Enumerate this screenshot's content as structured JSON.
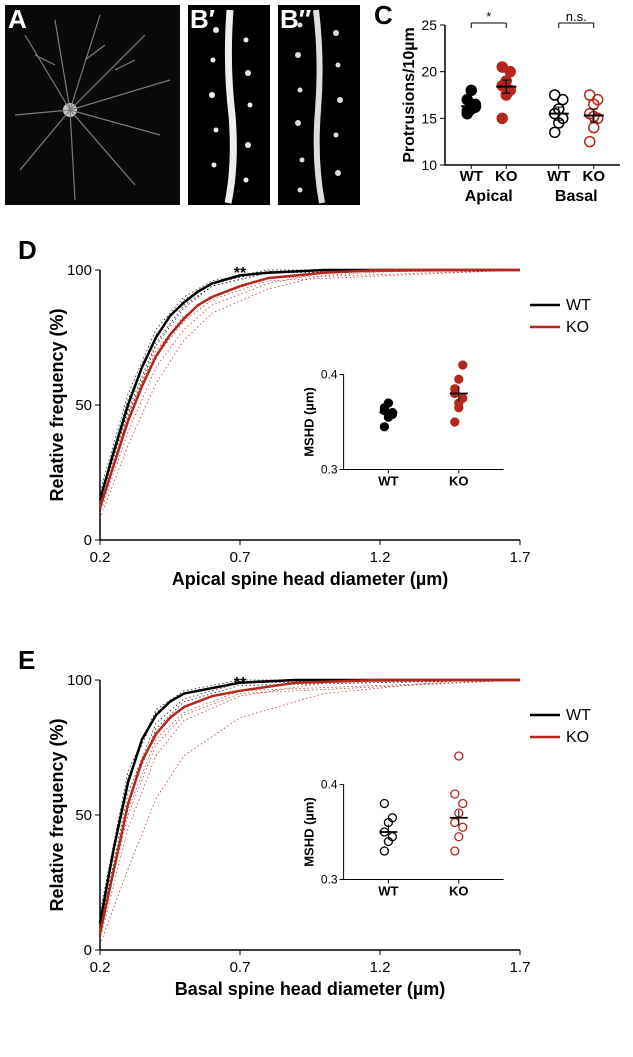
{
  "labels": {
    "A": "A",
    "Bp": "B′",
    "Bpp": "B′′",
    "C": "C",
    "D": "D",
    "E": "E"
  },
  "colors": {
    "wt": "#000000",
    "ko": "#b5261f",
    "bg": "#ffffff",
    "inset_border": "#000000"
  },
  "panelC": {
    "type": "scatter",
    "ylabel": "Protrusions/10µm",
    "ylim": [
      10,
      25
    ],
    "yticks": [
      10,
      15,
      20,
      25
    ],
    "groups": [
      "Apical",
      "Basal"
    ],
    "subgroups": [
      "WT",
      "KO"
    ],
    "sig": {
      "apical": "*",
      "basal": "n.s."
    },
    "data": {
      "apical_wt": {
        "values": [
          15.5,
          16.0,
          16.5,
          17.0,
          18.0,
          16.2,
          15.8
        ],
        "mean": 16.3,
        "color": "#000000",
        "filled": true
      },
      "apical_ko": {
        "values": [
          15.0,
          17.5,
          18.0,
          18.5,
          19.0,
          20.0,
          20.5,
          18.2
        ],
        "mean": 18.4,
        "color": "#b5261f",
        "filled": true
      },
      "basal_wt": {
        "values": [
          13.5,
          14.5,
          15.0,
          15.5,
          16.0,
          17.0,
          17.5
        ],
        "mean": 15.5,
        "color": "#000000",
        "filled": false
      },
      "basal_ko": {
        "values": [
          12.5,
          14.0,
          15.0,
          15.5,
          16.5,
          17.0,
          17.5,
          15.2
        ],
        "mean": 15.3,
        "color": "#b5261f",
        "filled": false
      }
    },
    "marker_size": 5,
    "errbar_width": 8
  },
  "panelD": {
    "type": "line",
    "title_sig": "**",
    "ylabel": "Relative frequency (%)",
    "xlabel": "Apical spine head diameter (µm)",
    "xlim": [
      0.2,
      1.7
    ],
    "xticks": [
      0.2,
      0.7,
      1.2,
      1.7
    ],
    "ylim": [
      0,
      100
    ],
    "yticks": [
      0,
      50,
      100
    ],
    "legend": {
      "WT": "#000000",
      "KO": "#b5261f"
    },
    "line_width_main": 2.5,
    "line_width_dotted": 0.7,
    "mean_wt": [
      [
        0.2,
        15
      ],
      [
        0.25,
        33
      ],
      [
        0.3,
        50
      ],
      [
        0.35,
        64
      ],
      [
        0.4,
        75
      ],
      [
        0.45,
        83
      ],
      [
        0.5,
        88
      ],
      [
        0.55,
        92
      ],
      [
        0.6,
        95
      ],
      [
        0.7,
        98
      ],
      [
        0.8,
        99
      ],
      [
        1.0,
        100
      ],
      [
        1.7,
        100
      ]
    ],
    "mean_ko": [
      [
        0.2,
        12
      ],
      [
        0.25,
        28
      ],
      [
        0.3,
        44
      ],
      [
        0.35,
        57
      ],
      [
        0.4,
        68
      ],
      [
        0.45,
        76
      ],
      [
        0.5,
        82
      ],
      [
        0.55,
        87
      ],
      [
        0.6,
        90
      ],
      [
        0.7,
        94
      ],
      [
        0.8,
        97
      ],
      [
        1.0,
        99
      ],
      [
        1.2,
        100
      ],
      [
        1.7,
        100
      ]
    ],
    "dotted_wt": [
      [
        [
          0.2,
          18
        ],
        [
          0.3,
          54
        ],
        [
          0.4,
          78
        ],
        [
          0.5,
          90
        ],
        [
          0.6,
          96
        ],
        [
          0.8,
          100
        ],
        [
          1.7,
          100
        ]
      ],
      [
        [
          0.2,
          12
        ],
        [
          0.3,
          46
        ],
        [
          0.4,
          72
        ],
        [
          0.5,
          86
        ],
        [
          0.6,
          94
        ],
        [
          0.8,
          99
        ],
        [
          1.7,
          100
        ]
      ],
      [
        [
          0.2,
          16
        ],
        [
          0.3,
          52
        ],
        [
          0.4,
          76
        ],
        [
          0.5,
          89
        ],
        [
          0.6,
          95
        ],
        [
          0.8,
          99.5
        ],
        [
          1.7,
          100
        ]
      ],
      [
        [
          0.2,
          14
        ],
        [
          0.3,
          48
        ],
        [
          0.4,
          73
        ],
        [
          0.5,
          87
        ],
        [
          0.6,
          94
        ],
        [
          0.8,
          99
        ],
        [
          1.7,
          100
        ]
      ]
    ],
    "dotted_ko": [
      [
        [
          0.2,
          10
        ],
        [
          0.3,
          40
        ],
        [
          0.4,
          64
        ],
        [
          0.5,
          78
        ],
        [
          0.6,
          87
        ],
        [
          0.8,
          95
        ],
        [
          1.0,
          99
        ],
        [
          1.7,
          100
        ]
      ],
      [
        [
          0.2,
          14
        ],
        [
          0.3,
          47
        ],
        [
          0.4,
          70
        ],
        [
          0.5,
          83
        ],
        [
          0.6,
          90
        ],
        [
          0.8,
          97
        ],
        [
          1.7,
          100
        ]
      ],
      [
        [
          0.2,
          8
        ],
        [
          0.3,
          35
        ],
        [
          0.4,
          58
        ],
        [
          0.5,
          74
        ],
        [
          0.6,
          84
        ],
        [
          0.8,
          93
        ],
        [
          1.0,
          98
        ],
        [
          1.3,
          100
        ],
        [
          1.7,
          100
        ]
      ],
      [
        [
          0.2,
          13
        ],
        [
          0.3,
          45
        ],
        [
          0.4,
          68
        ],
        [
          0.5,
          81
        ],
        [
          0.6,
          89
        ],
        [
          0.8,
          96
        ],
        [
          1.7,
          100
        ]
      ]
    ],
    "inset": {
      "ylabel": "MSHD (µm)",
      "ylim": [
        0.3,
        0.4
      ],
      "yticks": [
        0.3,
        0.4
      ],
      "groups": [
        "WT",
        "KO"
      ],
      "wt": {
        "values": [
          0.345,
          0.355,
          0.36,
          0.365,
          0.37,
          0.358,
          0.362
        ],
        "mean": 0.36,
        "color": "#000000",
        "filled": true
      },
      "ko": {
        "values": [
          0.35,
          0.365,
          0.375,
          0.38,
          0.395,
          0.41,
          0.385,
          0.37
        ],
        "mean": 0.38,
        "color": "#b5261f",
        "filled": true
      }
    }
  },
  "panelE": {
    "type": "line",
    "title_sig": "**",
    "ylabel": "Relative frequency (%)",
    "xlabel": "Basal spine head diameter (µm)",
    "xlim": [
      0.2,
      1.7
    ],
    "xticks": [
      0.2,
      0.7,
      1.2,
      1.7
    ],
    "ylim": [
      0,
      100
    ],
    "yticks": [
      0,
      50,
      100
    ],
    "legend": {
      "WT": "#000000",
      "KO": "#b5261f"
    },
    "line_width_main": 2.5,
    "line_width_dotted": 0.7,
    "mean_wt": [
      [
        0.2,
        10
      ],
      [
        0.25,
        38
      ],
      [
        0.3,
        62
      ],
      [
        0.35,
        78
      ],
      [
        0.4,
        87
      ],
      [
        0.45,
        92
      ],
      [
        0.5,
        95
      ],
      [
        0.6,
        97
      ],
      [
        0.7,
        99
      ],
      [
        0.9,
        100
      ],
      [
        1.7,
        100
      ]
    ],
    "mean_ko": [
      [
        0.2,
        6
      ],
      [
        0.25,
        30
      ],
      [
        0.3,
        54
      ],
      [
        0.35,
        70
      ],
      [
        0.4,
        80
      ],
      [
        0.45,
        86
      ],
      [
        0.5,
        90
      ],
      [
        0.6,
        94
      ],
      [
        0.7,
        96
      ],
      [
        0.9,
        99
      ],
      [
        1.2,
        100
      ],
      [
        1.7,
        100
      ]
    ],
    "dotted_wt": [
      [
        [
          0.2,
          14
        ],
        [
          0.3,
          66
        ],
        [
          0.4,
          89
        ],
        [
          0.5,
          96
        ],
        [
          0.7,
          100
        ],
        [
          1.7,
          100
        ]
      ],
      [
        [
          0.2,
          8
        ],
        [
          0.3,
          58
        ],
        [
          0.4,
          84
        ],
        [
          0.5,
          93
        ],
        [
          0.7,
          99
        ],
        [
          1.7,
          100
        ]
      ],
      [
        [
          0.2,
          12
        ],
        [
          0.3,
          64
        ],
        [
          0.4,
          88
        ],
        [
          0.5,
          95
        ],
        [
          0.7,
          99.5
        ],
        [
          1.7,
          100
        ]
      ],
      [
        [
          0.2,
          6
        ],
        [
          0.3,
          55
        ],
        [
          0.4,
          82
        ],
        [
          0.5,
          92
        ],
        [
          0.7,
          98
        ],
        [
          1.7,
          100
        ]
      ]
    ],
    "dotted_ko": [
      [
        [
          0.2,
          4
        ],
        [
          0.3,
          45
        ],
        [
          0.4,
          72
        ],
        [
          0.5,
          85
        ],
        [
          0.7,
          94
        ],
        [
          1.0,
          99
        ],
        [
          1.7,
          100
        ]
      ],
      [
        [
          0.2,
          8
        ],
        [
          0.3,
          52
        ],
        [
          0.4,
          78
        ],
        [
          0.5,
          88
        ],
        [
          0.7,
          96
        ],
        [
          1.7,
          100
        ]
      ],
      [
        [
          0.2,
          2
        ],
        [
          0.3,
          30
        ],
        [
          0.4,
          56
        ],
        [
          0.5,
          72
        ],
        [
          0.7,
          86
        ],
        [
          1.0,
          95
        ],
        [
          1.5,
          100
        ],
        [
          1.7,
          100
        ]
      ],
      [
        [
          0.2,
          7
        ],
        [
          0.3,
          50
        ],
        [
          0.4,
          76
        ],
        [
          0.5,
          87
        ],
        [
          0.7,
          95
        ],
        [
          1.7,
          100
        ]
      ]
    ],
    "inset": {
      "ylabel": "MSHD (µm)",
      "ylim": [
        0.3,
        0.4
      ],
      "yticks": [
        0.3,
        0.4
      ],
      "groups": [
        "WT",
        "KO"
      ],
      "wt": {
        "values": [
          0.33,
          0.34,
          0.345,
          0.35,
          0.36,
          0.365,
          0.38
        ],
        "mean": 0.35,
        "color": "#000000",
        "filled": false
      },
      "ko": {
        "values": [
          0.33,
          0.345,
          0.355,
          0.36,
          0.37,
          0.38,
          0.39,
          0.43
        ],
        "mean": 0.365,
        "color": "#b5261f",
        "filled": false
      }
    }
  }
}
